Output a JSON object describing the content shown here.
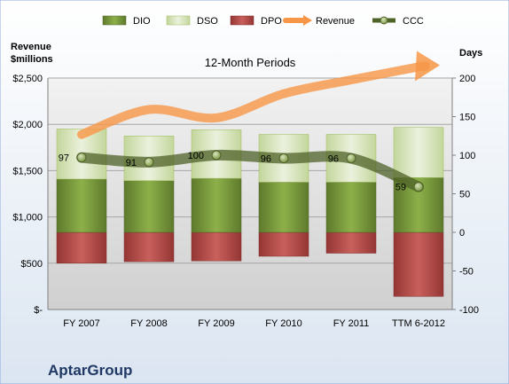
{
  "chart_data": {
    "type": "bar",
    "company": "AptarGroup",
    "subtitle": "12-Month Periods",
    "left_axis_title": [
      "Revenue",
      "$millions"
    ],
    "right_axis_title": "Days",
    "categories": [
      "FY 2007",
      "FY 2008",
      "FY 2009",
      "FY 2010",
      "FY 2011",
      "TTM 6-2012"
    ],
    "left_ticks": [
      "$-",
      "$500",
      "$1,000",
      "$1,500",
      "$2,000",
      "$2,500"
    ],
    "left_ylim": [
      0,
      2500
    ],
    "right_ticks": [
      "-100",
      "-50",
      "0",
      "50",
      "100",
      "150",
      "200"
    ],
    "right_ylim": [
      -100,
      200
    ],
    "series": [
      {
        "name": "DIO",
        "axis": "right",
        "type": "stacked-bar",
        "values": [
          69,
          67,
          70,
          65,
          65,
          71
        ],
        "color": "#77933c"
      },
      {
        "name": "DSO",
        "axis": "right",
        "type": "stacked-bar",
        "values": [
          65,
          58,
          63,
          62,
          62,
          65
        ],
        "color": "#d7e4bd"
      },
      {
        "name": "DPO",
        "axis": "right",
        "type": "negative-bar",
        "values": [
          -40,
          -38,
          -37,
          -31,
          -27,
          -83
        ],
        "color": "#c0504d"
      },
      {
        "name": "Revenue",
        "axis": "left",
        "type": "line",
        "values": [
          1890,
          2160,
          2070,
          2330,
          2480,
          2620
        ],
        "color": "#f79646"
      },
      {
        "name": "CCC",
        "axis": "right",
        "type": "line",
        "values": [
          97,
          91,
          100,
          96,
          96,
          59
        ],
        "color": "#4f6228"
      }
    ],
    "ccc_labels": [
      "97",
      "91",
      "100",
      "96",
      "96",
      "59"
    ],
    "grid": true,
    "legend_position": "top"
  }
}
